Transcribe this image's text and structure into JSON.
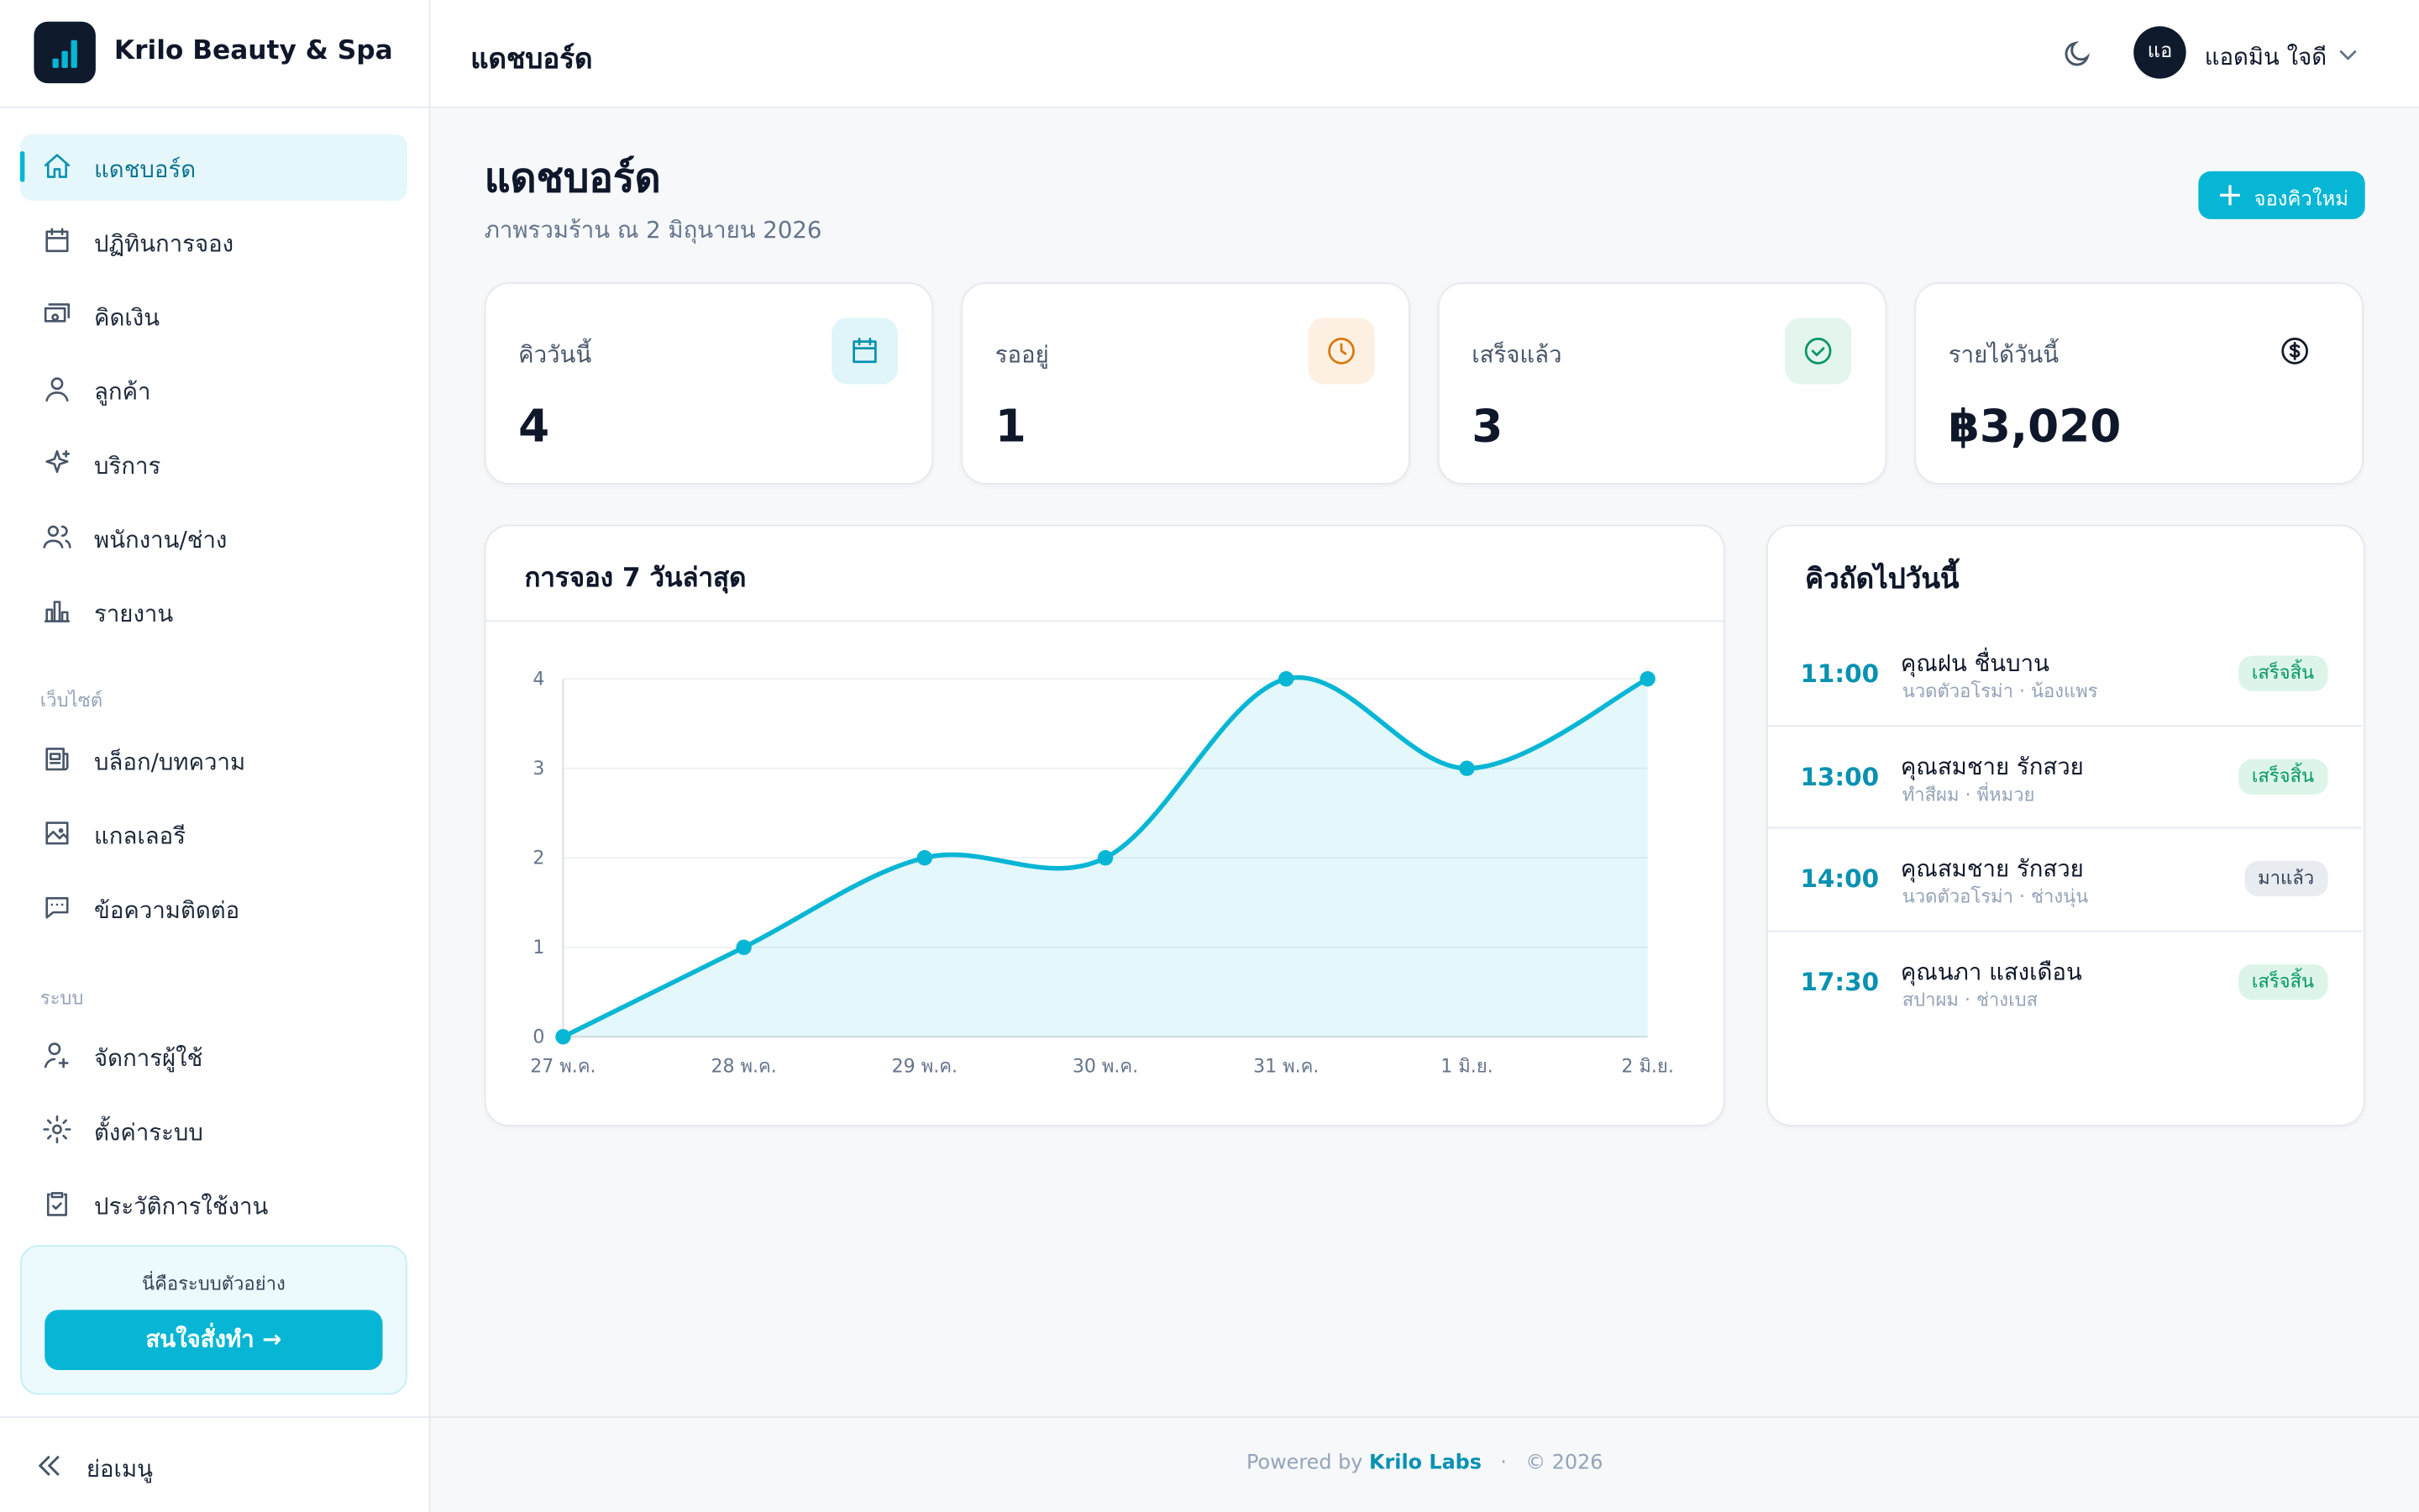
{
  "brand": "Krilo Beauty & Spa",
  "header": {
    "title": "แดชบอร์ด",
    "user_initials": "แอ",
    "user_name": "แอดมิน ใจดี"
  },
  "sidebar": {
    "items": [
      "แดชบอร์ด",
      "ปฏิทินการจอง",
      "คิดเงิน",
      "ลูกค้า",
      "บริการ",
      "พนักงาน/ช่าง",
      "รายงาน"
    ],
    "website_label": "เว็บไซต์",
    "website_items": [
      "บล็อก/บทความ",
      "แกลเลอรี",
      "ข้อความติดต่อ"
    ],
    "system_label": "ระบบ",
    "system_items": [
      "จัดการผู้ใช้",
      "ตั้งค่าระบบ",
      "ประวัติการใช้งาน"
    ],
    "demo_note": "นี่คือระบบตัวอย่าง",
    "demo_button": "สนใจสั่งทำ →",
    "collapse": "ย่อเมนู"
  },
  "page": {
    "title": "แดชบอร์ด",
    "subtitle": "ภาพรวมร้าน ณ 2 มิถุนายน 2026",
    "new_booking": "จองคิวใหม่"
  },
  "stats": [
    {
      "label": "คิววันนี้",
      "value": 4
    },
    {
      "label": "รออยู่",
      "value": 1
    },
    {
      "label": "เสร็จแล้ว",
      "value": 3
    },
    {
      "label": "รายได้วันนี้",
      "value": "฿3,020"
    }
  ],
  "chart_data": {
    "type": "line",
    "title": "การจอง 7 วันล่าสุด",
    "categories": [
      "27 พ.ค.",
      "28 พ.ค.",
      "29 พ.ค.",
      "30 พ.ค.",
      "31 พ.ค.",
      "1 มิ.ย.",
      "2 มิ.ย."
    ],
    "values": [
      0,
      1,
      2,
      2,
      4,
      3,
      4
    ],
    "color": "#06b6d4",
    "area": true,
    "ylim": [
      0,
      4
    ],
    "yticks": [
      0,
      1,
      2,
      3,
      4
    ],
    "grid": true
  },
  "queue": {
    "title": "คิวถัดไปวันนี้",
    "rows": [
      {
        "time": "11:00",
        "name": "คุณฝน ชื่นบาน",
        "detail": "นวดตัวอโรม่า · น้องแพร",
        "status": "เสร็จสิ้น"
      },
      {
        "time": "13:00",
        "name": "คุณสมชาย รักสวย",
        "detail": "ทำสีผม · พี่หมวย",
        "status": "เสร็จสิ้น"
      },
      {
        "time": "14:00",
        "name": "คุณสมชาย รักสวย",
        "detail": "นวดตัวอโรม่า · ช่างนุ่น",
        "status": "มาแล้ว"
      },
      {
        "time": "17:30",
        "name": "คุณนภา แสงเดือน",
        "detail": "สปาผม · ช่างเบส",
        "status": "เสร็จสิ้น"
      }
    ]
  },
  "footer": {
    "powered": "Powered by",
    "company": "Krilo Labs",
    "sep": "·",
    "copyright": "© 2026"
  }
}
